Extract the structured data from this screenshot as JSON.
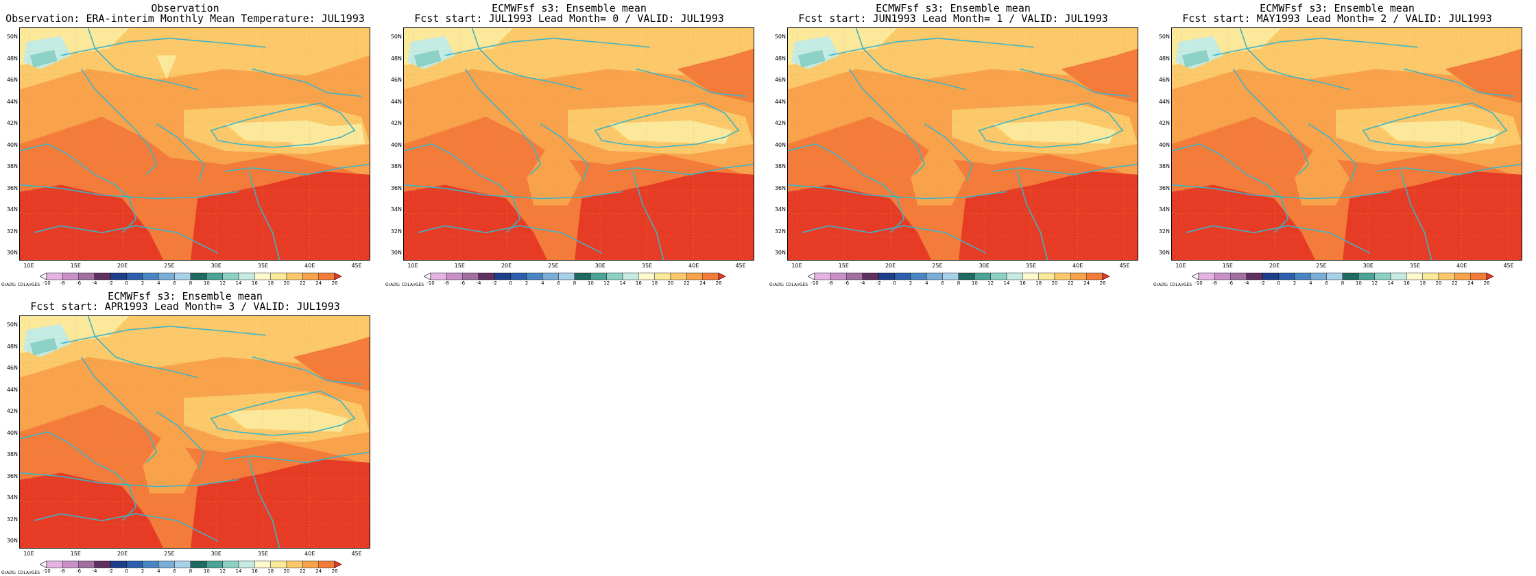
{
  "panels": [
    {
      "title1": "Observation",
      "title2": "Observation: ERA-interim Monthly Mean Temperature: JUL1993"
    },
    {
      "title1": "ECMWFsf s3: Ensemble mean",
      "title2": "Fcst start: JUL1993  Lead Month= 0 / VALID: JUL1993"
    },
    {
      "title1": "ECMWFsf s3: Ensemble mean",
      "title2": "Fcst start: JUN1993  Lead Month= 1 / VALID: JUL1993"
    },
    {
      "title1": "ECMWFsf s3: Ensemble mean",
      "title2": "Fcst start: MAY1993  Lead Month= 2 / VALID: JUL1993"
    },
    {
      "title1": "ECMWFsf s3: Ensemble mean",
      "title2": "Fcst start: APR1993  Lead Month= 3 / VALID: JUL1993"
    }
  ],
  "lat_labels": [
    "50N",
    "48N",
    "46N",
    "44N",
    "42N",
    "40N",
    "38N",
    "36N",
    "34N",
    "32N",
    "30N"
  ],
  "lon_labels": [
    "10E",
    "15E",
    "20E",
    "25E",
    "30E",
    "35E",
    "40E",
    "45E"
  ],
  "colorbar": {
    "labels": [
      "-10",
      "-8",
      "-6",
      "-4",
      "-2",
      "0",
      "2",
      "4",
      "6",
      "8",
      "10",
      "12",
      "14",
      "16",
      "18",
      "20",
      "22",
      "24",
      "26"
    ],
    "colors": [
      "#f5f5f5",
      "#e6b3e6",
      "#c891c8",
      "#a070a0",
      "#603060",
      "#1c3f8c",
      "#2c60ac",
      "#4a86c4",
      "#7aaed8",
      "#a9d0e8",
      "#1d6a60",
      "#4ba596",
      "#8cd1c4",
      "#c4ebe4",
      "#fffacd",
      "#fbe89a",
      "#fbc86a",
      "#f9a24c",
      "#f37c3a",
      "#e63c26"
    ]
  },
  "grads_label": "GrADS: COLA/IGES",
  "coastline_color": "#3cb4c8"
}
